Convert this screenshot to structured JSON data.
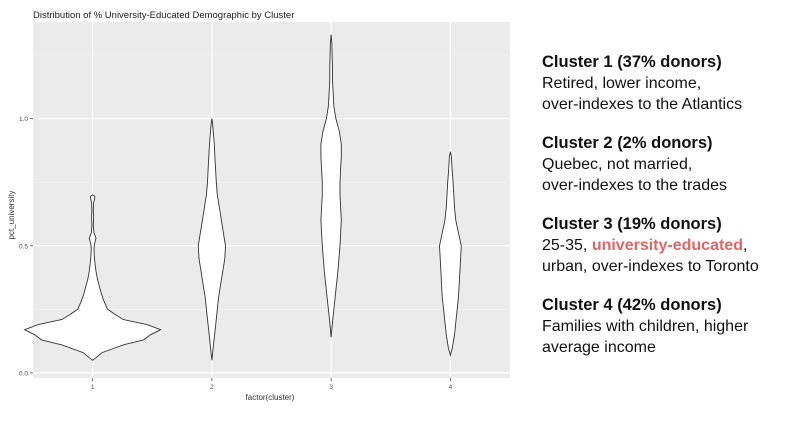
{
  "colors": {
    "panel_background": "#ebebeb",
    "grid_major": "#ffffff",
    "violin_fill": "#ffffff",
    "violin_stroke": "#333333",
    "axis_text": "#4d4d4d",
    "highlight": "#e06666"
  },
  "chart_data": {
    "type": "violin",
    "title": "Distribution of % University-Educated Demographic by Cluster",
    "xlabel": "factor(cluster)",
    "ylabel": "pct_university",
    "categories": [
      "1",
      "2",
      "3",
      "4"
    ],
    "yticks": [
      "0.0",
      "0.5",
      "1.0"
    ],
    "ylim": [
      -0.02,
      1.38
    ],
    "grid": true,
    "violins": [
      {
        "category": "1",
        "profile": [
          [
            0.05,
            0
          ],
          [
            0.06,
            0.05
          ],
          [
            0.08,
            0.14
          ],
          [
            0.11,
            0.45
          ],
          [
            0.13,
            0.75
          ],
          [
            0.15,
            0.85
          ],
          [
            0.17,
            1.0
          ],
          [
            0.19,
            0.8
          ],
          [
            0.21,
            0.45
          ],
          [
            0.23,
            0.33
          ],
          [
            0.25,
            0.22
          ],
          [
            0.28,
            0.17
          ],
          [
            0.31,
            0.13
          ],
          [
            0.34,
            0.1
          ],
          [
            0.37,
            0.07
          ],
          [
            0.4,
            0.05
          ],
          [
            0.43,
            0.035
          ],
          [
            0.46,
            0.025
          ],
          [
            0.49,
            0.02
          ],
          [
            0.51,
            0.03
          ],
          [
            0.53,
            0.05
          ],
          [
            0.55,
            0.02
          ],
          [
            0.58,
            0.01
          ],
          [
            0.61,
            0.015
          ],
          [
            0.64,
            0.01
          ],
          [
            0.67,
            0.015
          ],
          [
            0.685,
            0.03
          ],
          [
            0.695,
            0.03
          ],
          [
            0.7,
            0.0
          ]
        ]
      },
      {
        "category": "2",
        "profile": [
          [
            0.05,
            0
          ],
          [
            0.1,
            0.02
          ],
          [
            0.15,
            0.04
          ],
          [
            0.2,
            0.06
          ],
          [
            0.25,
            0.08
          ],
          [
            0.3,
            0.1
          ],
          [
            0.35,
            0.13
          ],
          [
            0.4,
            0.16
          ],
          [
            0.45,
            0.19
          ],
          [
            0.5,
            0.2
          ],
          [
            0.55,
            0.17
          ],
          [
            0.6,
            0.14
          ],
          [
            0.65,
            0.11
          ],
          [
            0.7,
            0.08
          ],
          [
            0.75,
            0.065
          ],
          [
            0.8,
            0.055
          ],
          [
            0.85,
            0.045
          ],
          [
            0.9,
            0.035
          ],
          [
            0.95,
            0.02
          ],
          [
            0.98,
            0.01
          ],
          [
            1.0,
            0
          ]
        ]
      },
      {
        "category": "3",
        "profile": [
          [
            0.14,
            0
          ],
          [
            0.2,
            0.02
          ],
          [
            0.3,
            0.06
          ],
          [
            0.4,
            0.1
          ],
          [
            0.5,
            0.13
          ],
          [
            0.6,
            0.15
          ],
          [
            0.7,
            0.13
          ],
          [
            0.75,
            0.13
          ],
          [
            0.8,
            0.14
          ],
          [
            0.85,
            0.15
          ],
          [
            0.9,
            0.15
          ],
          [
            0.95,
            0.12
          ],
          [
            1.0,
            0.07
          ],
          [
            1.05,
            0.04
          ],
          [
            1.1,
            0.03
          ],
          [
            1.15,
            0.02
          ],
          [
            1.2,
            0.02
          ],
          [
            1.25,
            0.015
          ],
          [
            1.3,
            0.01
          ],
          [
            1.33,
            0
          ]
        ]
      },
      {
        "category": "4",
        "profile": [
          [
            0.07,
            0
          ],
          [
            0.1,
            0.03
          ],
          [
            0.15,
            0.06
          ],
          [
            0.2,
            0.08
          ],
          [
            0.25,
            0.1
          ],
          [
            0.3,
            0.12
          ],
          [
            0.35,
            0.13
          ],
          [
            0.4,
            0.14
          ],
          [
            0.45,
            0.15
          ],
          [
            0.5,
            0.16
          ],
          [
            0.55,
            0.12
          ],
          [
            0.6,
            0.08
          ],
          [
            0.65,
            0.06
          ],
          [
            0.7,
            0.05
          ],
          [
            0.75,
            0.04
          ],
          [
            0.8,
            0.025
          ],
          [
            0.85,
            0.015
          ],
          [
            0.87,
            0
          ]
        ]
      }
    ]
  },
  "side_panel": {
    "clusters": [
      {
        "heading": "Cluster 1 (37% donors)",
        "line1": "Retired, lower income,",
        "line2": "over-indexes to the Atlantics"
      },
      {
        "heading": "Cluster 2 (2% donors)",
        "line1": "Quebec, not married,",
        "line2": "over-indexes to the trades"
      },
      {
        "heading": "Cluster 3 (19% donors)",
        "line1_prefix": "25-35, ",
        "line1_highlight": "university-educated",
        "line1_suffix": ",",
        "line2": "urban, over-indexes to Toronto"
      },
      {
        "heading": "Cluster 4 (42% donors)",
        "line1": "Families with children, higher",
        "line2": "average income"
      }
    ]
  }
}
